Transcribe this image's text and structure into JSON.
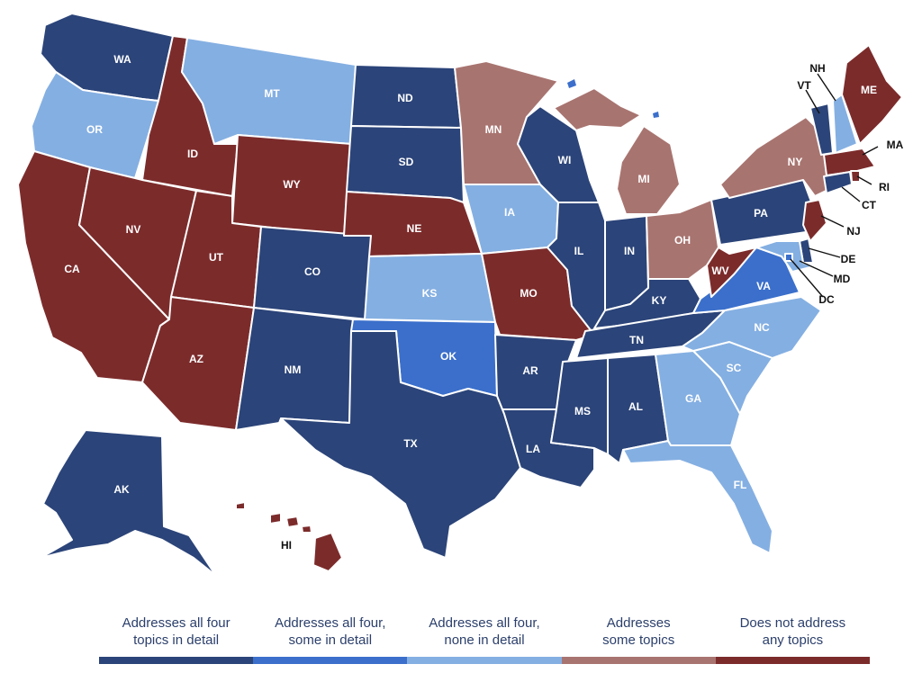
{
  "colors": {
    "all_four_detail": "#2b4479",
    "all_four_some_detail": "#3b6fcb",
    "all_four_none_detail": "#84afe2",
    "some_topics": "#a87470",
    "none": "#7c2b2b"
  },
  "states": {
    "WA": "WA",
    "OR": "OR",
    "CA": "CA",
    "ID": "ID",
    "NV": "NV",
    "MT": "MT",
    "WY": "WY",
    "UT": "UT",
    "AZ": "AZ",
    "CO": "CO",
    "NM": "NM",
    "ND": "ND",
    "SD": "SD",
    "NE": "NE",
    "KS": "KS",
    "OK": "OK",
    "TX": "TX",
    "MN": "MN",
    "IA": "IA",
    "MO": "MO",
    "AR": "AR",
    "LA": "LA",
    "WI": "WI",
    "IL": "IL",
    "MI": "MI",
    "IN": "IN",
    "OH": "OH",
    "KY": "KY",
    "TN": "TN",
    "MS": "MS",
    "AL": "AL",
    "GA": "GA",
    "FL": "FL",
    "SC": "SC",
    "NC": "NC",
    "VA": "VA",
    "WV": "WV",
    "PA": "PA",
    "NY": "NY",
    "VT": "VT",
    "NH": "NH",
    "ME": "ME",
    "MA": "MA",
    "RI": "RI",
    "CT": "CT",
    "NJ": "NJ",
    "DE": "DE",
    "MD": "MD",
    "DC": "DC",
    "AK": "AK",
    "HI": "HI"
  },
  "legend": [
    {
      "line1": "Addresses all four",
      "line2": "topics in detail",
      "color": "#2b4479"
    },
    {
      "line1": "Addresses all four,",
      "line2": "some in detail",
      "color": "#3b6fcb"
    },
    {
      "line1": "Addresses all four,",
      "line2": "none in detail",
      "color": "#84afe2"
    },
    {
      "line1": "Addresses",
      "line2": "some topics",
      "color": "#a87470"
    },
    {
      "line1": "Does not address",
      "line2": "any topics",
      "color": "#7c2b2b"
    }
  ]
}
